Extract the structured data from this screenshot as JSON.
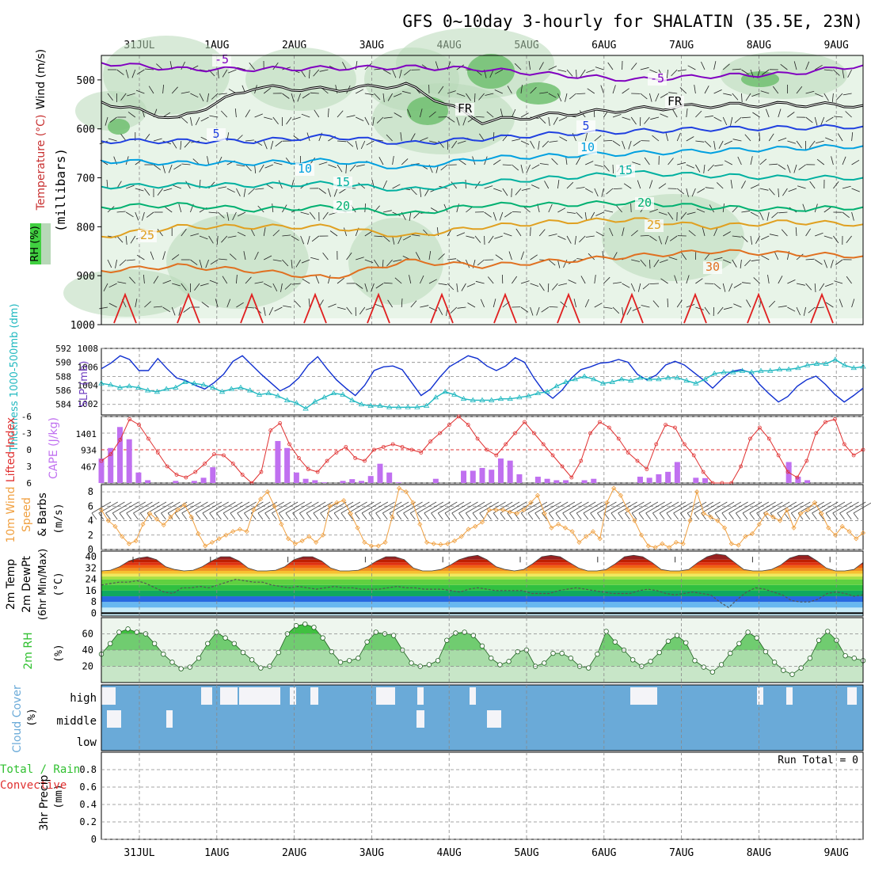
{
  "title": "GFS 0~10day 3-hourly for SHALATIN (35.5E, 23N)",
  "date_labels": [
    "31JUL",
    "1AUG",
    "2AUG",
    "3AUG",
    "4AUG",
    "5AUG",
    "6AUG",
    "7AUG",
    "8AUG",
    "9AUG"
  ],
  "colors": {
    "frame": "#000000",
    "grid": "#888888",
    "temp_contour_cold": "#8000c0",
    "temp_contour_freeze": "#000000",
    "temp_contour_5": "#2040e0",
    "temp_contour_10": "#00a0e0",
    "temp_contour_15": "#00b0a0",
    "temp_contour_20": "#00b070",
    "temp_contour_25": "#e0a020",
    "temp_contour_30": "#e07020",
    "temp_contour_35": "#e02020",
    "rh_fill_light": "#e8f4e8",
    "rh_fill_mid": "#b8d8b8",
    "rh_fill_dark": "#70c070",
    "rh_fill_green": "#40d040",
    "slp": "#1030d0",
    "thickness": "#20b8c0",
    "lifted_index": "#e03030",
    "cape": "#c070f0",
    "wind10m": "#f0a040",
    "rh2m": "#30c030",
    "cloud": "#6aaad8",
    "cloud_white": "#f4f4f8",
    "precip_total": "#30c030",
    "precip_convective": "#e03030",
    "temp_bands": [
      "#c8ecf8",
      "#68b8f0",
      "#2868e0",
      "#10a860",
      "#30c040",
      "#60d040",
      "#a8e040",
      "#f0e860",
      "#f8c030",
      "#f09020",
      "#f06010",
      "#e03010",
      "#c02000",
      "#982020"
    ]
  },
  "chart_data": [
    {
      "panel": "upper-air",
      "type": "heatmap",
      "ylabel": "(millibars)",
      "side_labels": [
        "Wind (m/s)",
        "Temperature (°C)",
        "RH (%)"
      ],
      "yticks": [
        "500",
        "600",
        "700",
        "800",
        "900",
        "1000"
      ],
      "contour_labels": [
        "-5",
        "-5",
        "FR",
        "FR",
        "5",
        "5",
        "10",
        "10",
        "15",
        "15",
        "20",
        "20",
        "25",
        "25",
        "30"
      ],
      "isotherms": [
        {
          "label": "-5",
          "pressure": [
            465,
            478,
            478,
            476,
            474,
            478,
            490,
            500,
            492,
            488,
            470
          ]
        },
        {
          "label": "FR",
          "pressure": [
            545,
            580,
            515,
            520,
            510,
            585,
            570,
            560,
            552,
            550,
            552
          ]
        },
        {
          "label": "5",
          "pressure": [
            625,
            625,
            625,
            615,
            630,
            620,
            610,
            605,
            600,
            598,
            595
          ]
        },
        {
          "label": "10",
          "pressure": [
            665,
            670,
            670,
            665,
            680,
            660,
            655,
            650,
            645,
            640,
            635
          ]
        },
        {
          "label": "15",
          "pressure": [
            718,
            715,
            715,
            712,
            725,
            710,
            700,
            690,
            695,
            700,
            700
          ]
        },
        {
          "label": "20",
          "pressure": [
            760,
            755,
            765,
            760,
            775,
            755,
            755,
            750,
            760,
            765,
            760
          ]
        },
        {
          "label": "25",
          "pressure": [
            820,
            800,
            800,
            800,
            820,
            800,
            790,
            785,
            800,
            790,
            795
          ]
        },
        {
          "label": "30",
          "pressure": [
            890,
            880,
            890,
            905,
            870,
            880,
            870,
            860,
            850,
            855,
            860
          ]
        }
      ],
      "ylim": [
        450,
        1000
      ]
    },
    {
      "panel": "pressure",
      "type": "line",
      "side_labels": [
        "Thickness 1000-500mb (dm)",
        "SLP (mb)"
      ],
      "left_ticks": [
        "584",
        "586",
        "588",
        "590",
        "592"
      ],
      "right_ticks": [
        "1002",
        "1004",
        "1006",
        "1008"
      ],
      "series": [
        {
          "name": "SLP",
          "axis": "right",
          "values": [
            1005.8,
            1006.4,
            1007.2,
            1006.8,
            1005.6,
            1005.6,
            1006.9,
            1005.8,
            1004.8,
            1004.5,
            1004.0,
            1003.6,
            1004.3,
            1005.2,
            1006.6,
            1007.2,
            1006.2,
            1005.2,
            1004.3,
            1003.4,
            1003.9,
            1004.8,
            1006.2,
            1007.1,
            1005.8,
            1004.6,
            1003.7,
            1002.9,
            1004.0,
            1005.6,
            1006.0,
            1006.1,
            1005.7,
            1004.3,
            1002.9,
            1003.6,
            1004.9,
            1006.0,
            1006.6,
            1007.2,
            1006.9,
            1006.1,
            1005.6,
            1006.1,
            1007.0,
            1006.5,
            1004.8,
            1003.4,
            1002.6,
            1003.5,
            1004.8,
            1005.7,
            1006.0,
            1006.4,
            1006.5,
            1006.8,
            1006.5,
            1005.2,
            1004.6,
            1005.1,
            1006.2,
            1006.6,
            1006.2,
            1005.4,
            1004.6,
            1003.7,
            1004.7,
            1005.5,
            1005.7,
            1005.4,
            1004.1,
            1003.1,
            1002.2,
            1002.8,
            1003.9,
            1004.6,
            1005.0,
            1004.1,
            1003.0,
            1002.2,
            1002.9,
            1003.7
          ]
        },
        {
          "name": "Thickness",
          "axis": "left",
          "values": [
            587.0,
            586.8,
            586.4,
            586.6,
            586.4,
            586.0,
            585.8,
            586.2,
            586.4,
            587.2,
            587.0,
            586.8,
            586.4,
            585.8,
            586.2,
            586.4,
            586.0,
            585.4,
            585.6,
            585.2,
            584.6,
            584.2,
            583.4,
            584.4,
            585.0,
            585.6,
            585.4,
            584.6,
            584.0,
            583.8,
            583.8,
            583.6,
            583.6,
            583.6,
            583.6,
            583.8,
            585.0,
            585.8,
            585.4,
            584.8,
            584.6,
            584.6,
            584.6,
            584.8,
            584.8,
            585.0,
            585.2,
            585.6,
            585.8,
            586.6,
            587.2,
            587.6,
            588.0,
            587.6,
            587.0,
            587.2,
            587.6,
            587.4,
            587.8,
            587.6,
            587.6,
            587.8,
            587.8,
            587.4,
            587.0,
            587.6,
            588.4,
            588.6,
            588.6,
            588.8,
            588.6,
            588.8,
            588.8,
            589.0,
            589.0,
            589.2,
            589.6,
            589.8,
            589.8,
            590.4,
            589.6,
            589.2,
            589.4
          ]
        }
      ]
    },
    {
      "panel": "instability",
      "type": "bar",
      "side_labels": [
        "Lifted Index",
        "CAPE (J/kg)"
      ],
      "li_ticks": [
        "-6",
        "-3",
        "0",
        "3",
        "6"
      ],
      "cape_ticks": [
        "467",
        "934",
        "1401"
      ],
      "series": [
        {
          "name": "Lifted Index",
          "values": [
            2.0,
            0.8,
            -1.8,
            -5.5,
            -4.5,
            -2.0,
            0.5,
            3.0,
            4.5,
            5.0,
            4.0,
            2.5,
            0.8,
            1.0,
            2.5,
            4.5,
            6.0,
            4.0,
            -3.5,
            -4.8,
            -1.0,
            1.5,
            3.5,
            4.0,
            2.0,
            0.5,
            -0.5,
            1.5,
            2.0,
            0.0,
            -0.5,
            -1.0,
            -0.5,
            0.0,
            0.5,
            -1.5,
            -3.0,
            -4.5,
            -6.0,
            -4.5,
            -2.0,
            0.0,
            1.0,
            -1.0,
            -3.0,
            -5.0,
            -3.0,
            -1.0,
            1.0,
            3.0,
            5.0,
            2.0,
            -3.0,
            -5.0,
            -4.0,
            -2.0,
            0.5,
            2.0,
            3.5,
            -1.0,
            -4.5,
            -4.0,
            -1.0,
            1.0,
            4.0,
            6.0,
            6.5,
            6.0,
            3.0,
            -2.0,
            -4.0,
            -2.0,
            1.0,
            4.0,
            5.0,
            2.0,
            -3.0,
            -5.0,
            -5.5,
            -1.0,
            1.0,
            0.0
          ]
        },
        {
          "name": "CAPE",
          "values": [
            700,
            1000,
            1600,
            1250,
            300,
            80,
            0,
            0,
            60,
            0,
            60,
            150,
            450,
            0,
            0,
            0,
            0,
            0,
            0,
            1200,
            1000,
            300,
            120,
            80,
            20,
            0,
            60,
            110,
            60,
            200,
            550,
            300,
            20,
            0,
            0,
            0,
            120,
            0,
            0,
            350,
            350,
            430,
            380,
            700,
            640,
            250,
            0,
            180,
            120,
            80,
            80,
            0,
            80,
            120,
            0,
            0,
            0,
            0,
            180,
            150,
            250,
            320,
            600,
            0,
            150,
            140,
            0,
            0,
            0,
            0,
            0,
            0,
            0,
            0,
            600,
            180,
            80,
            0,
            0,
            0,
            0,
            0,
            0
          ]
        }
      ]
    },
    {
      "panel": "wind10m",
      "type": "line",
      "ylabel": "(m/s)",
      "side_labels": [
        "10m Wind",
        "Speed",
        "& Barbs"
      ],
      "yticks": [
        "0",
        "2",
        "4",
        "6",
        "8"
      ],
      "ylim": [
        0,
        9
      ],
      "series": [
        {
          "name": "10m Wind Speed",
          "values": [
            5.5,
            4.0,
            3.2,
            1.8,
            0.8,
            1.2,
            3.5,
            5.0,
            4.2,
            3.4,
            4.5,
            5.5,
            6.2,
            4.5,
            2.2,
            0.5,
            1.0,
            1.5,
            2.0,
            2.5,
            2.8,
            2.5,
            5.5,
            7.0,
            8.0,
            6.0,
            3.5,
            1.5,
            0.8,
            1.2,
            1.8,
            1.0,
            2.0,
            6.0,
            6.5,
            6.8,
            5.0,
            3.0,
            1.0,
            0.5,
            0.5,
            1.0,
            4.5,
            8.5,
            8.0,
            6.5,
            3.5,
            1.0,
            0.8,
            0.7,
            0.8,
            1.2,
            1.8,
            2.8,
            3.2,
            3.8,
            5.5,
            5.5,
            5.5,
            5.2,
            5.0,
            5.5,
            6.5,
            7.5,
            5.0,
            3.0,
            3.5,
            3.0,
            2.5,
            1.0,
            1.8,
            2.5,
            1.5,
            6.5,
            8.5,
            7.5,
            5.5,
            4.0,
            2.0,
            0.5,
            0.3,
            0.8,
            0.3,
            1.0,
            0.8,
            4.0,
            8.0,
            5.0,
            4.5,
            4.0,
            3.0,
            0.8,
            0.6,
            1.8,
            2.2,
            3.5,
            5.0,
            4.5,
            4.0,
            5.5,
            3.0,
            5.0,
            5.5,
            6.5,
            5.0,
            3.0,
            2.0,
            3.2,
            2.5,
            1.5,
            2.3
          ]
        }
      ]
    },
    {
      "panel": "temperature",
      "type": "area",
      "ylabel": "(°C)",
      "side_labels": [
        "2m Temp",
        "2m DewPt",
        "(6hr Min/Max)"
      ],
      "yticks": [
        "0",
        "8",
        "16",
        "24",
        "32",
        "40"
      ],
      "ylim": [
        -2,
        44
      ],
      "series": [
        {
          "name": "2m Temp",
          "values": [
            30,
            30.5,
            33,
            37,
            39,
            40,
            38,
            33,
            31,
            30,
            30.5,
            33,
            37,
            40,
            40,
            37,
            32,
            30,
            30,
            30.5,
            33,
            38,
            40,
            40,
            37,
            32,
            30,
            30,
            30.5,
            33,
            37,
            40,
            40,
            38,
            32,
            30,
            30,
            31,
            34,
            38,
            40,
            41,
            38,
            33,
            31,
            30,
            31,
            35,
            40,
            41,
            40,
            36,
            32,
            30,
            30,
            31,
            35,
            40,
            41,
            40,
            36,
            31,
            30,
            30,
            31,
            36,
            40,
            42,
            41,
            36,
            31,
            30,
            30,
            31,
            34,
            39,
            41,
            41,
            37,
            32,
            30,
            30,
            31,
            36
          ]
        },
        {
          "name": "2m DewPt",
          "values": [
            20,
            21,
            22,
            22,
            23,
            21,
            18,
            15,
            14,
            18,
            18,
            19,
            18,
            20,
            22,
            24,
            23,
            22,
            22,
            20,
            19,
            18,
            19,
            18,
            17,
            18,
            19,
            18,
            18,
            17,
            17,
            17,
            18,
            19,
            18,
            18,
            17,
            17,
            17,
            16,
            15,
            17,
            18,
            17,
            16,
            16,
            16,
            16,
            14,
            14,
            14,
            16,
            17,
            18,
            17,
            16,
            15,
            14,
            14,
            14,
            16,
            17,
            16,
            14,
            13,
            14,
            15,
            14,
            13,
            8,
            4,
            10,
            15,
            18,
            17,
            15,
            13,
            9,
            8,
            8,
            10,
            14,
            15,
            14,
            12,
            13
          ]
        }
      ]
    },
    {
      "panel": "rh2m",
      "type": "area",
      "ylabel": "(%)",
      "side_labels": [
        "2m RH"
      ],
      "yticks": [
        "20",
        "40",
        "60"
      ],
      "ylim": [
        0,
        80
      ],
      "series": [
        {
          "name": "2m RH",
          "values": [
            35,
            48,
            62,
            66,
            62,
            60,
            48,
            35,
            25,
            17,
            19,
            30,
            48,
            62,
            55,
            48,
            37,
            28,
            18,
            20,
            37,
            60,
            70,
            72,
            68,
            55,
            38,
            25,
            27,
            30,
            50,
            62,
            60,
            58,
            40,
            24,
            20,
            22,
            27,
            52,
            61,
            62,
            58,
            45,
            30,
            22,
            26,
            38,
            40,
            20,
            24,
            36,
            36,
            30,
            20,
            18,
            35,
            63,
            50,
            40,
            28,
            20,
            26,
            37,
            51,
            58,
            49,
            27,
            19,
            13,
            22,
            36,
            48,
            62,
            55,
            38,
            25,
            15,
            10,
            18,
            30,
            52,
            63,
            52,
            33,
            30,
            27
          ]
        }
      ]
    },
    {
      "panel": "cloud",
      "type": "area",
      "ylabel": "(%)",
      "side_labels": [
        "Cloud Cover"
      ],
      "layer_labels": [
        "high",
        "middle",
        "low"
      ]
    },
    {
      "panel": "precip",
      "type": "bar",
      "ylabel": "(mm)",
      "side_labels": [
        "Total / Rain",
        "Convective",
        "3hr Precip"
      ],
      "yticks": [
        "0",
        "0.2",
        "0.4",
        "0.6",
        "0.8"
      ],
      "ylim": [
        0,
        1
      ],
      "annotation": "Run Total = 0",
      "series": []
    }
  ]
}
